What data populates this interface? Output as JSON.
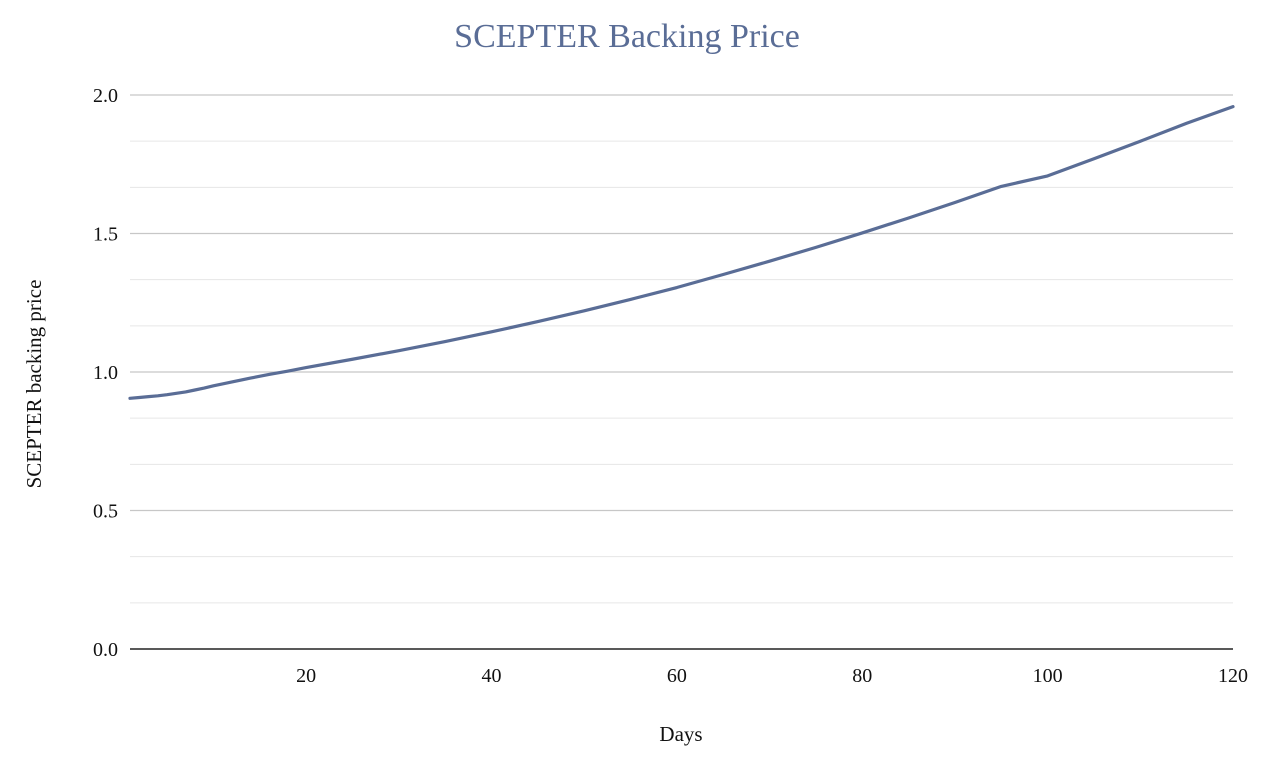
{
  "chart_data": {
    "type": "line",
    "title": "SCEPTER Backing Price",
    "xlabel": "Days",
    "ylabel": "SCEPTER backing price",
    "xlim": [
      1,
      120
    ],
    "ylim": [
      0,
      2
    ],
    "x_ticks": [
      "20",
      "40",
      "60",
      "80",
      "100",
      "120"
    ],
    "y_ticks": [
      "0.0",
      "0.5",
      "1.0",
      "1.5",
      "2.0"
    ],
    "grid": true,
    "legend": "none",
    "colors": {
      "line": "#5a6d96",
      "title": "#5a6d96",
      "major_grid": "#c7c7c7",
      "minor_grid": "#e6e6e6",
      "axis": "#222222"
    },
    "series": [
      {
        "x": [
          1,
          2,
          3,
          4,
          5,
          6,
          7,
          8,
          9,
          10,
          12,
          14,
          16,
          18,
          20,
          25,
          30,
          35,
          40,
          45,
          50,
          55,
          60,
          65,
          70,
          75,
          80,
          85,
          90,
          95,
          100,
          105,
          110,
          115,
          120
        ],
        "values": [
          0.905,
          0.908,
          0.911,
          0.914,
          0.918,
          0.923,
          0.928,
          0.935,
          0.942,
          0.95,
          0.964,
          0.978,
          0.991,
          1.003,
          1.016,
          1.046,
          1.077,
          1.11,
          1.145,
          1.182,
          1.221,
          1.262,
          1.305,
          1.352,
          1.4,
          1.45,
          1.502,
          1.556,
          1.612,
          1.67,
          1.708,
          1.77,
          1.833,
          1.898,
          1.958
        ]
      }
    ]
  }
}
